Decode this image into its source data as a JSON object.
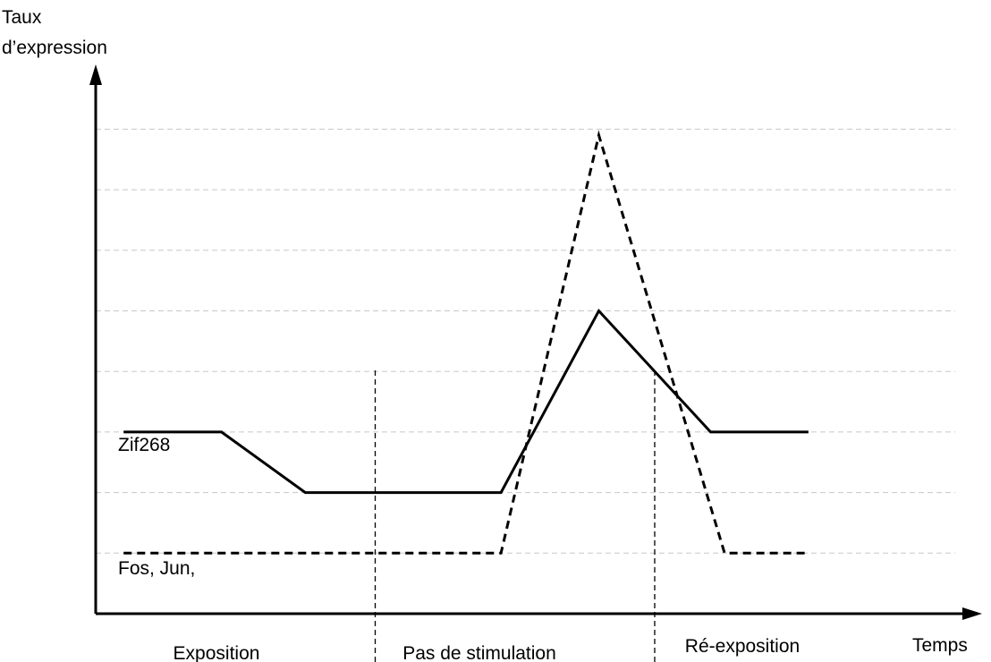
{
  "chart_data": {
    "type": "line",
    "ylabel_line1": "Taux",
    "ylabel_line2": "d’expression",
    "xlabel": "Temps",
    "phases": [
      "Exposition",
      "Pas de stimulation",
      "Ré-exposition"
    ],
    "phase_boundaries": [
      1,
      2
    ],
    "grid": true,
    "y_gridlines": 8,
    "series": [
      {
        "name": "Zif268",
        "style": "solid",
        "points": [
          [
            0.1,
            3
          ],
          [
            0.45,
            3
          ],
          [
            0.75,
            2
          ],
          [
            1.45,
            2
          ],
          [
            1.8,
            5
          ],
          [
            2.2,
            3
          ],
          [
            2.55,
            3
          ]
        ]
      },
      {
        "name": "Fos, Jun,",
        "style": "dashed",
        "points": [
          [
            0.1,
            1
          ],
          [
            1.45,
            1
          ],
          [
            1.8,
            7.9
          ],
          [
            2.25,
            1
          ],
          [
            2.55,
            1
          ]
        ]
      }
    ],
    "colors": {
      "line": "#000000",
      "grid": "#c8c8c8",
      "background": "#ffffff"
    }
  }
}
